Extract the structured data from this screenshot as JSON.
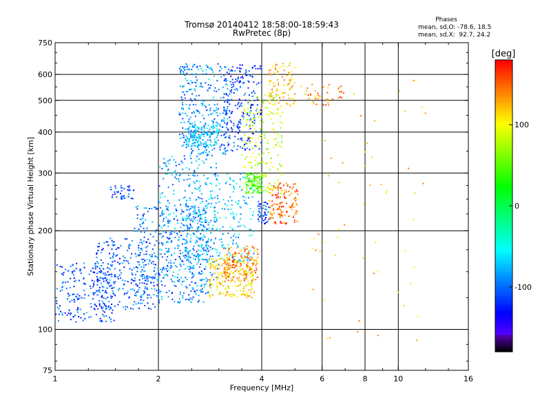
{
  "chart_data": {
    "type": "scatter",
    "title": "Tromsø 20140412 18:58:00-18:59:43",
    "subtitle": "RwPretec (8p)",
    "xlabel": "Frequency [MHz]",
    "ylabel": "Stationary phase Virtual Height [km]",
    "xscale": "log",
    "yscale": "log",
    "xlim": [
      1,
      16
    ],
    "ylim": [
      75,
      750
    ],
    "x_ticks": [
      1,
      2,
      4,
      6,
      8,
      10,
      16
    ],
    "y_ticks": [
      75,
      100,
      200,
      300,
      400,
      500,
      600,
      750
    ],
    "x_grid": [
      2,
      4,
      6,
      8,
      10
    ],
    "y_grid": [
      100,
      200,
      300,
      400,
      500,
      600
    ],
    "grid": true,
    "colorbar": {
      "label": "[deg]",
      "range": [
        -180,
        180
      ],
      "ticks": [
        100,
        0,
        -100
      ]
    },
    "phase_stats": {
      "heading": "Phases",
      "line_o": "mean, sd,O: -78.6, 18.5",
      "line_x": "mean, sd,X:  92.7, 24.2"
    },
    "clusters": [
      {
        "f0": 1.0,
        "f1": 1.5,
        "h0": 105,
        "h1": 160,
        "phase": -110,
        "n": 220
      },
      {
        "f0": 1.3,
        "f1": 2.0,
        "h0": 115,
        "h1": 190,
        "phase": -105,
        "n": 260
      },
      {
        "f0": 1.7,
        "f1": 2.8,
        "h0": 120,
        "h1": 240,
        "phase": -95,
        "n": 380
      },
      {
        "f0": 2.0,
        "f1": 3.0,
        "h0": 130,
        "h1": 340,
        "phase": -85,
        "n": 320
      },
      {
        "f0": 2.4,
        "f1": 3.8,
        "h0": 160,
        "h1": 300,
        "phase": -70,
        "n": 260
      },
      {
        "f0": 2.8,
        "f1": 3.8,
        "h0": 125,
        "h1": 165,
        "phase": 110,
        "n": 200
      },
      {
        "f0": 3.1,
        "f1": 3.9,
        "h0": 140,
        "h1": 180,
        "phase": 140,
        "n": 160
      },
      {
        "f0": 2.3,
        "f1": 3.2,
        "h0": 340,
        "h1": 650,
        "phase": -90,
        "n": 320
      },
      {
        "f0": 2.4,
        "f1": 3.0,
        "h0": 360,
        "h1": 420,
        "phase": -70,
        "n": 140
      },
      {
        "f0": 3.1,
        "f1": 4.0,
        "h0": 350,
        "h1": 650,
        "phase": -115,
        "n": 220
      },
      {
        "f0": 3.5,
        "f1": 4.6,
        "h0": 260,
        "h1": 520,
        "phase": 80,
        "n": 200
      },
      {
        "f0": 3.6,
        "f1": 4.0,
        "h0": 260,
        "h1": 300,
        "phase": 40,
        "n": 90
      },
      {
        "f0": 4.2,
        "f1": 5.1,
        "h0": 210,
        "h1": 280,
        "phase": 150,
        "n": 140
      },
      {
        "f0": 4.2,
        "f1": 5.0,
        "h0": 480,
        "h1": 650,
        "phase": 120,
        "n": 90
      },
      {
        "f0": 3.9,
        "f1": 4.2,
        "h0": 210,
        "h1": 250,
        "phase": -110,
        "n": 50
      },
      {
        "f0": 1.45,
        "f1": 1.7,
        "h0": 250,
        "h1": 275,
        "phase": -115,
        "n": 40
      },
      {
        "f0": 5.2,
        "f1": 7.0,
        "h0": 480,
        "h1": 560,
        "phase": 140,
        "n": 40
      },
      {
        "f0": 5.6,
        "f1": 12.0,
        "h0": 90,
        "h1": 600,
        "phase": 120,
        "n": 60
      }
    ]
  }
}
